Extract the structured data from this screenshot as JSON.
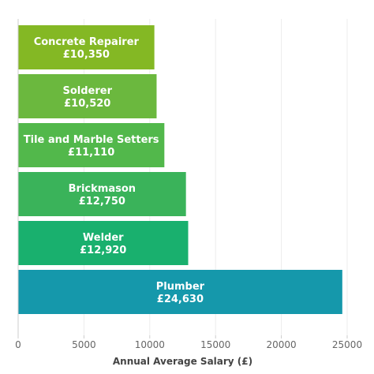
{
  "chart_data": {
    "type": "bar",
    "orientation": "horizontal",
    "categories": [
      "Concrete Repairer",
      "Solderer",
      "Tile and Marble Setters",
      "Brickmason",
      "Welder",
      "Plumber"
    ],
    "values": [
      10350,
      10520,
      11110,
      12750,
      12920,
      24630
    ],
    "value_labels": [
      "£10,350",
      "£10,520",
      "£11,110",
      "£12,750",
      "£12,920",
      "£24,630"
    ],
    "colors": [
      "#84b824",
      "#6bb83e",
      "#52b84b",
      "#3ab35a",
      "#19b06e",
      "#1598ab"
    ],
    "xlabel": "Annual Average Salary (£)",
    "ylabel": "",
    "title": "",
    "xlim": [
      0,
      25000
    ],
    "xticks": [
      0,
      5000,
      10000,
      15000,
      20000,
      25000
    ],
    "xtick_labels": [
      "0",
      "5000",
      "10000",
      "15000",
      "20000",
      "25000"
    ],
    "grid": "vertical",
    "legend": "none"
  }
}
